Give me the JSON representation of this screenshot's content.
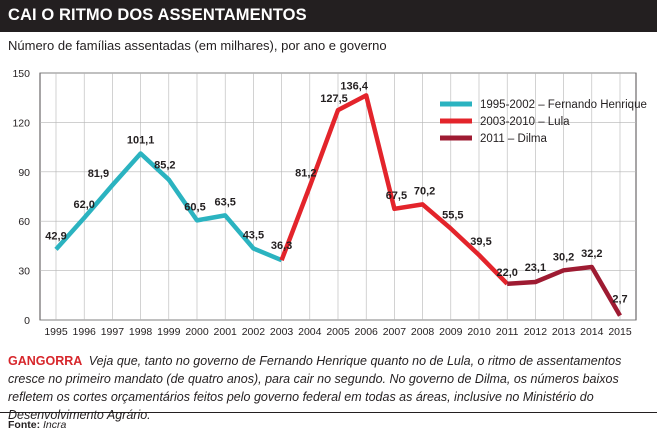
{
  "header": {
    "title": "CAI O RITMO DOS ASSENTAMENTOS",
    "subtitle": "Número de famílias assentadas (em milhares), por ano e governo"
  },
  "chart_data": {
    "type": "line",
    "categories": [
      "1995",
      "1996",
      "1997",
      "1998",
      "1999",
      "2000",
      "2001",
      "2002",
      "2003",
      "2004",
      "2005",
      "2006",
      "2007",
      "2008",
      "2009",
      "2010",
      "2011",
      "2012",
      "2013",
      "2014",
      "2015"
    ],
    "x": [
      1995,
      1996,
      1997,
      1998,
      1999,
      2000,
      2001,
      2002,
      2003,
      2004,
      2005,
      2006,
      2007,
      2008,
      2009,
      2010,
      2011,
      2012,
      2013,
      2014,
      2015
    ],
    "ylim": [
      0,
      150
    ],
    "yticks": [
      0,
      30,
      60,
      90,
      120,
      150
    ],
    "grid": true,
    "legend_position": "top-right",
    "series": [
      {
        "name": "1995-2002 – Fernando Henrique",
        "color": "#2bb3c0",
        "x": [
          1995,
          1996,
          1997,
          1998,
          1999,
          2000,
          2001,
          2002,
          2003
        ],
        "values": [
          42.9,
          62.0,
          81.9,
          101.1,
          85.2,
          60.5,
          63.5,
          43.5,
          36.3
        ]
      },
      {
        "name": "2003-2010 – Lula",
        "color": "#e3242b",
        "x": [
          2003,
          2004,
          2005,
          2006,
          2007,
          2008,
          2009,
          2010,
          2011
        ],
        "values": [
          36.3,
          81.2,
          127.5,
          136.4,
          67.5,
          70.2,
          55.5,
          39.5,
          22.0
        ]
      },
      {
        "name": "2011 – Dilma",
        "color": "#9e1b32",
        "x": [
          2011,
          2012,
          2013,
          2014,
          2015
        ],
        "values": [
          22.0,
          23.1,
          30.2,
          32.2,
          2.7
        ]
      }
    ],
    "data_labels": [
      {
        "x": 1995,
        "label": "42,9"
      },
      {
        "x": 1996,
        "label": "62,0"
      },
      {
        "x": 1997,
        "label": "81,9"
      },
      {
        "x": 1998,
        "label": "101,1"
      },
      {
        "x": 1999,
        "label": "85,2"
      },
      {
        "x": 2000,
        "label": "60,5"
      },
      {
        "x": 2001,
        "label": "63,5"
      },
      {
        "x": 2002,
        "label": "43,5"
      },
      {
        "x": 2003,
        "label": "36,3"
      },
      {
        "x": 2004,
        "label": "81,2"
      },
      {
        "x": 2005,
        "label": "127,5"
      },
      {
        "x": 2006,
        "label": "136,4"
      },
      {
        "x": 2007,
        "label": "67,5"
      },
      {
        "x": 2008,
        "label": "70,2"
      },
      {
        "x": 2009,
        "label": "55,5"
      },
      {
        "x": 2010,
        "label": "39,5"
      },
      {
        "x": 2011,
        "label": "22,0"
      },
      {
        "x": 2012,
        "label": "23,1"
      },
      {
        "x": 2013,
        "label": "30,2"
      },
      {
        "x": 2014,
        "label": "32,2"
      },
      {
        "x": 2015,
        "label": "2,7"
      }
    ]
  },
  "caption": {
    "kicker": "GANGORRA",
    "text": "Veja que, tanto no governo de Fernando Henrique quanto no de Lula, o ritmo de assentamentos cresce no primeiro mandato (de quatro anos), para cair no segundo. No governo de Dilma, os números baixos refletem os cortes orçamentários feitos pelo governo federal em todas as áreas, inclusive no Ministério do Desenvolvimento Agrário."
  },
  "source": {
    "label": "Fonte:",
    "value": "Incra"
  }
}
